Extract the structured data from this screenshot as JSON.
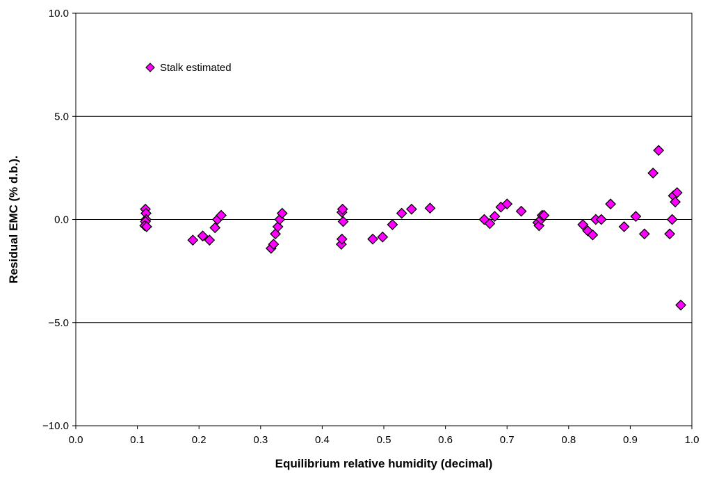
{
  "chart_data": {
    "type": "scatter",
    "title": "",
    "xlabel": "Equilibrium relative humidity (decimal)",
    "ylabel": "Residual EMC (% d.b.).",
    "xlim": [
      0.0,
      1.0
    ],
    "ylim": [
      -10.0,
      10.0
    ],
    "x_ticks": [
      "0.0",
      "0.1",
      "0.2",
      "0.3",
      "0.4",
      "0.5",
      "0.6",
      "0.7",
      "0.8",
      "0.9",
      "1.0"
    ],
    "y_ticks": [
      "10.0",
      "5.0",
      "0.0",
      "−5.0",
      "−10.0"
    ],
    "grid": "horizontal major gridlines",
    "legend_position": "top-left",
    "marker": "diamond",
    "colors": {
      "marker_fill": "#FF00FF",
      "marker_edge": "#000000",
      "grid": "#000000"
    },
    "series": [
      {
        "name": "Stalk estimated",
        "points": [
          [
            0.113,
            0.5
          ],
          [
            0.114,
            0.3
          ],
          [
            0.114,
            0.0
          ],
          [
            0.113,
            -0.1
          ],
          [
            0.112,
            -0.3
          ],
          [
            0.115,
            -0.35
          ],
          [
            0.19,
            -1.0
          ],
          [
            0.206,
            -0.8
          ],
          [
            0.217,
            -1.0
          ],
          [
            0.226,
            -0.4
          ],
          [
            0.23,
            0.0
          ],
          [
            0.236,
            0.2
          ],
          [
            0.317,
            -1.4
          ],
          [
            0.321,
            -1.2
          ],
          [
            0.324,
            -0.7
          ],
          [
            0.328,
            -0.35
          ],
          [
            0.331,
            0.0
          ],
          [
            0.335,
            0.3
          ],
          [
            0.431,
            -1.2
          ],
          [
            0.432,
            -0.95
          ],
          [
            0.432,
            0.35
          ],
          [
            0.433,
            0.5
          ],
          [
            0.434,
            -0.1
          ],
          [
            0.482,
            -0.95
          ],
          [
            0.498,
            -0.85
          ],
          [
            0.514,
            -0.25
          ],
          [
            0.529,
            0.3
          ],
          [
            0.545,
            0.5
          ],
          [
            0.575,
            0.55
          ],
          [
            0.663,
            0.0
          ],
          [
            0.672,
            -0.2
          ],
          [
            0.68,
            0.15
          ],
          [
            0.69,
            0.6
          ],
          [
            0.7,
            0.75
          ],
          [
            0.723,
            0.4
          ],
          [
            0.75,
            -0.15
          ],
          [
            0.752,
            -0.3
          ],
          [
            0.755,
            0.0
          ],
          [
            0.757,
            0.2
          ],
          [
            0.76,
            0.2
          ],
          [
            0.823,
            -0.25
          ],
          [
            0.831,
            -0.55
          ],
          [
            0.839,
            -0.75
          ],
          [
            0.844,
            0.0
          ],
          [
            0.853,
            0.0
          ],
          [
            0.868,
            0.75
          ],
          [
            0.89,
            -0.35
          ],
          [
            0.909,
            0.15
          ],
          [
            0.923,
            -0.7
          ],
          [
            0.937,
            2.25
          ],
          [
            0.946,
            3.35
          ],
          [
            0.964,
            -0.7
          ],
          [
            0.968,
            0.0
          ],
          [
            0.97,
            1.15
          ],
          [
            0.973,
            0.85
          ],
          [
            0.976,
            1.3
          ],
          [
            0.982,
            -4.15
          ]
        ]
      }
    ]
  }
}
